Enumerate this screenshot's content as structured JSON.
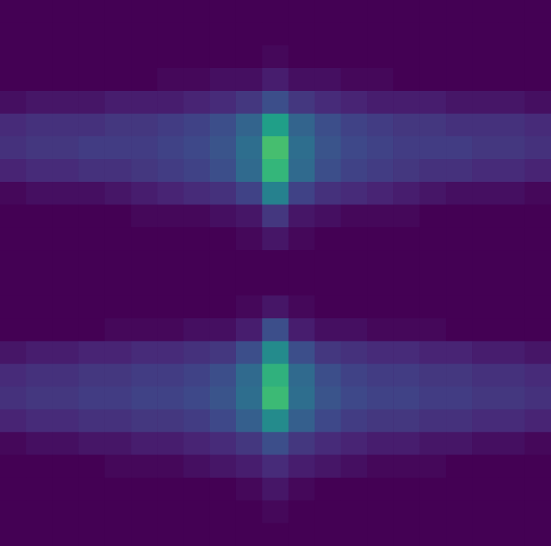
{
  "chart_data": {
    "type": "heatmap",
    "tick_labels": false,
    "zlim": [
      0,
      50
    ],
    "cells": [
      [
        0,
        0,
        0,
        0,
        0,
        0,
        0,
        0,
        0,
        0,
        0,
        0,
        0,
        0,
        0,
        0,
        0,
        0,
        0,
        0,
        0
      ],
      [
        0,
        0,
        0,
        0,
        0,
        0,
        0,
        0,
        0,
        0,
        0,
        0,
        0,
        0,
        0,
        0,
        0,
        0,
        0,
        0,
        0
      ],
      [
        0,
        0,
        0,
        0,
        0,
        0,
        0,
        0,
        0,
        0,
        1,
        0,
        0,
        0,
        0,
        0,
        0,
        0,
        0,
        0,
        0
      ],
      [
        0,
        0,
        0,
        0,
        0,
        0,
        1,
        1,
        2,
        2,
        4,
        2,
        2,
        1,
        1,
        0,
        0,
        0,
        0,
        0,
        0
      ],
      [
        2,
        3,
        3,
        3,
        4,
        4,
        4,
        5,
        6,
        8,
        12,
        8,
        6,
        5,
        4,
        4,
        4,
        3,
        3,
        3,
        2
      ],
      [
        6,
        7,
        7,
        7,
        8,
        8,
        9,
        10,
        12,
        16,
        28,
        16,
        12,
        10,
        9,
        8,
        8,
        7,
        7,
        7,
        6
      ],
      [
        7,
        8,
        8,
        9,
        9,
        9,
        10,
        11,
        13,
        18,
        35,
        18,
        13,
        11,
        10,
        9,
        9,
        9,
        8,
        8,
        7
      ],
      [
        5,
        6,
        6,
        7,
        7,
        8,
        9,
        10,
        12,
        17,
        33,
        17,
        12,
        10,
        9,
        8,
        7,
        7,
        6,
        6,
        5
      ],
      [
        1,
        2,
        2,
        2,
        3,
        4,
        5,
        6,
        7,
        10,
        22,
        10,
        7,
        6,
        5,
        4,
        3,
        2,
        2,
        2,
        1
      ],
      [
        0,
        0,
        0,
        0,
        0,
        1,
        1,
        1,
        2,
        3,
        8,
        3,
        2,
        1,
        1,
        1,
        0,
        0,
        0,
        0,
        0
      ],
      [
        0,
        0,
        0,
        0,
        0,
        0,
        0,
        0,
        0,
        1,
        3,
        1,
        0,
        0,
        0,
        0,
        0,
        0,
        0,
        0,
        0
      ],
      [
        0,
        0,
        0,
        0,
        0,
        0,
        0,
        0,
        0,
        0,
        0,
        0,
        0,
        0,
        0,
        0,
        0,
        0,
        0,
        0,
        0
      ],
      [
        0,
        0,
        0,
        0,
        0,
        0,
        0,
        0,
        0,
        0,
        0,
        0,
        0,
        0,
        0,
        0,
        0,
        0,
        0,
        0,
        0
      ],
      [
        0,
        0,
        0,
        0,
        0,
        0,
        0,
        0,
        0,
        1,
        3,
        1,
        0,
        0,
        0,
        0,
        0,
        0,
        0,
        0,
        0
      ],
      [
        0,
        0,
        0,
        0,
        1,
        1,
        1,
        2,
        2,
        4,
        12,
        4,
        2,
        2,
        1,
        1,
        1,
        0,
        0,
        0,
        0
      ],
      [
        3,
        4,
        4,
        5,
        5,
        6,
        6,
        7,
        8,
        12,
        24,
        12,
        8,
        7,
        6,
        6,
        5,
        5,
        4,
        4,
        3
      ],
      [
        6,
        7,
        7,
        8,
        8,
        9,
        9,
        10,
        12,
        17,
        32,
        17,
        12,
        10,
        9,
        9,
        8,
        8,
        7,
        7,
        6
      ],
      [
        7,
        8,
        8,
        9,
        9,
        10,
        10,
        11,
        13,
        18,
        34,
        18,
        13,
        11,
        10,
        10,
        9,
        9,
        8,
        8,
        7
      ],
      [
        5,
        6,
        6,
        7,
        7,
        8,
        8,
        9,
        11,
        15,
        24,
        15,
        11,
        9,
        8,
        8,
        7,
        7,
        6,
        6,
        5
      ],
      [
        1,
        2,
        2,
        3,
        3,
        4,
        4,
        5,
        6,
        8,
        12,
        8,
        6,
        5,
        4,
        4,
        3,
        3,
        2,
        2,
        1
      ],
      [
        0,
        0,
        0,
        0,
        1,
        1,
        1,
        2,
        3,
        4,
        6,
        4,
        3,
        2,
        1,
        1,
        1,
        0,
        0,
        0,
        0
      ],
      [
        0,
        0,
        0,
        0,
        0,
        0,
        0,
        0,
        0,
        1,
        3,
        1,
        0,
        0,
        0,
        0,
        0,
        0,
        0,
        0,
        0
      ],
      [
        0,
        0,
        0,
        0,
        0,
        0,
        0,
        0,
        0,
        0,
        1,
        0,
        0,
        0,
        0,
        0,
        0,
        0,
        0,
        0,
        0
      ],
      [
        0,
        0,
        0,
        0,
        0,
        0,
        0,
        0,
        0,
        0,
        0,
        0,
        0,
        0,
        0,
        0,
        0,
        0,
        0,
        0,
        0
      ]
    ]
  }
}
